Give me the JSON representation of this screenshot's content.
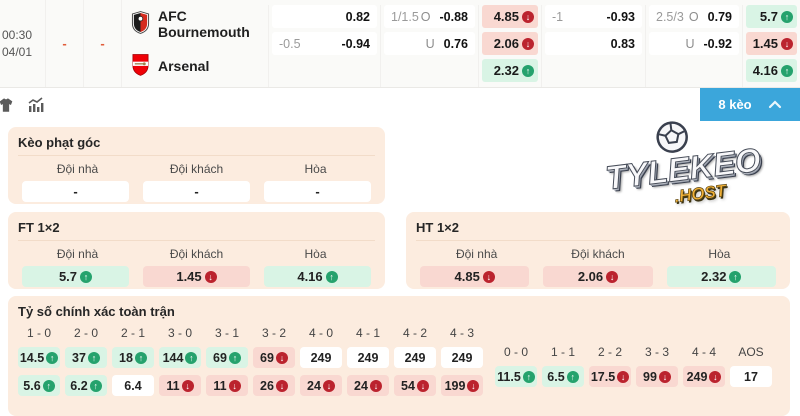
{
  "match": {
    "time": "00:30",
    "date": "04/01",
    "dash1": "-",
    "dash2": "-",
    "home": "AFC Bournemouth",
    "away": "Arsenal",
    "odds": {
      "ah_ft": {
        "r1_odd": "0.82",
        "r2_hc": "-0.5",
        "r2_odd": "-0.94"
      },
      "ou_ft": {
        "r1_hc": "1/1.5",
        "r1_side": "O",
        "r1_odd": "-0.88",
        "r2_side": "U",
        "r2_odd": "0.76"
      },
      "x12_a": [
        {
          "v": "4.85",
          "dir": "down"
        },
        {
          "v": "2.06",
          "dir": "down"
        },
        {
          "v": "2.32",
          "dir": "up"
        }
      ],
      "ah_ht": {
        "r1_hc": "-1",
        "r1_odd": "-0.93",
        "r2_odd": "0.83"
      },
      "ou_ht": {
        "r1_hc": "2.5/3",
        "r1_side": "O",
        "r1_odd": "0.79",
        "r2_side": "U",
        "r2_odd": "-0.92"
      },
      "x12_b": [
        {
          "v": "5.7",
          "dir": "up"
        },
        {
          "v": "1.45",
          "dir": "down"
        },
        {
          "v": "4.16",
          "dir": "up"
        }
      ]
    }
  },
  "toolbar": {
    "badge": "8 kèo"
  },
  "corner": {
    "title": "Kèo phạt góc",
    "headers": [
      "Đội nhà",
      "Đội khách",
      "Hòa"
    ],
    "values": [
      "-",
      "-",
      "-"
    ]
  },
  "ft": {
    "title": "FT 1×2",
    "headers": [
      "Đội nhà",
      "Đội khách",
      "Hòa"
    ],
    "cells": [
      {
        "v": "5.7",
        "dir": "up"
      },
      {
        "v": "1.45",
        "dir": "down"
      },
      {
        "v": "4.16",
        "dir": "up"
      }
    ]
  },
  "ht": {
    "title": "HT 1×2",
    "headers": [
      "Đội nhà",
      "Đội khách",
      "Hòa"
    ],
    "cells": [
      {
        "v": "4.85",
        "dir": "down"
      },
      {
        "v": "2.06",
        "dir": "down"
      },
      {
        "v": "2.32",
        "dir": "up"
      }
    ]
  },
  "scores": {
    "title": "Tỷ số chính xác toàn trận",
    "main": [
      {
        "label": "1 - 0",
        "r1": {
          "v": "14.5",
          "dir": "up"
        },
        "r2": {
          "v": "5.6",
          "dir": "up"
        }
      },
      {
        "label": "2 - 0",
        "r1": {
          "v": "37",
          "dir": "up"
        },
        "r2": {
          "v": "6.2",
          "dir": "up"
        }
      },
      {
        "label": "2 - 1",
        "r1": {
          "v": "18",
          "dir": "up"
        },
        "r2": {
          "v": "6.4",
          "dir": "none"
        }
      },
      {
        "label": "3 - 0",
        "r1": {
          "v": "144",
          "dir": "up"
        },
        "r2": {
          "v": "11",
          "dir": "down"
        }
      },
      {
        "label": "3 - 1",
        "r1": {
          "v": "69",
          "dir": "up"
        },
        "r2": {
          "v": "11",
          "dir": "down"
        }
      },
      {
        "label": "3 - 2",
        "r1": {
          "v": "69",
          "dir": "down"
        },
        "r2": {
          "v": "26",
          "dir": "down"
        }
      },
      {
        "label": "4 - 0",
        "r1": {
          "v": "249",
          "dir": "none"
        },
        "r2": {
          "v": "24",
          "dir": "down"
        }
      },
      {
        "label": "4 - 1",
        "r1": {
          "v": "249",
          "dir": "none"
        },
        "r2": {
          "v": "24",
          "dir": "down"
        }
      },
      {
        "label": "4 - 2",
        "r1": {
          "v": "249",
          "dir": "none"
        },
        "r2": {
          "v": "54",
          "dir": "down"
        }
      },
      {
        "label": "4 - 3",
        "r1": {
          "v": "249",
          "dir": "none"
        },
        "r2": {
          "v": "199",
          "dir": "down"
        }
      }
    ],
    "draws": [
      {
        "label": "0 - 0",
        "v": "11.5",
        "dir": "up"
      },
      {
        "label": "1 - 1",
        "v": "6.5",
        "dir": "up"
      },
      {
        "label": "2 - 2",
        "v": "17.5",
        "dir": "down"
      },
      {
        "label": "3 - 3",
        "v": "99",
        "dir": "down"
      },
      {
        "label": "4 - 4",
        "v": "249",
        "dir": "down"
      },
      {
        "label": "AOS",
        "v": "17",
        "dir": "none"
      }
    ]
  },
  "watermark": {
    "line1": "TYLEKEO",
    "line2": ".HOST"
  },
  "colors": {
    "up_bg": "#d9f4e5",
    "down_bg": "#f9d8d1",
    "up_circle": "#25a26d",
    "down_circle": "#bb232e",
    "card_bg": "#fcecdf",
    "accent_blue": "#3ba6db",
    "dash": "#e05c3a"
  }
}
